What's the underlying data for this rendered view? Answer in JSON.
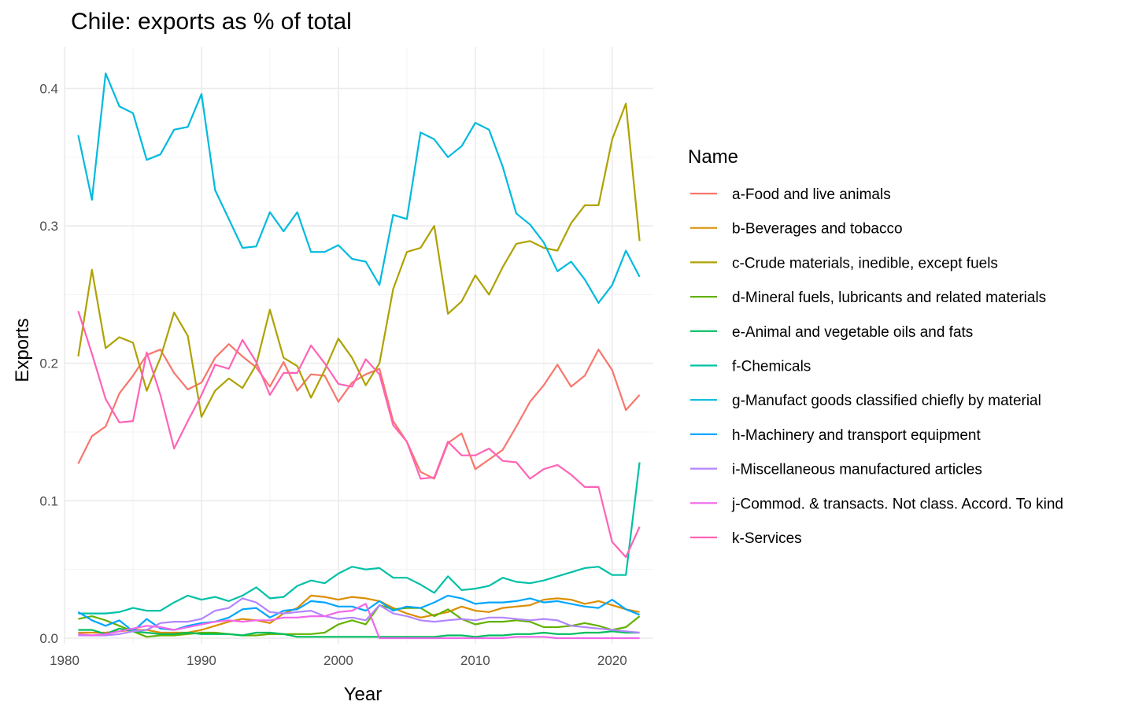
{
  "chart_data": {
    "type": "line",
    "title": "Chile: exports as % of total",
    "xlabel": "Year",
    "ylabel": "Exports",
    "legend_title": "Name",
    "legend_position": "right",
    "grid": true,
    "xlim": [
      1980,
      2023
    ],
    "ylim": [
      -0.004,
      0.43
    ],
    "x_ticks": [
      1980,
      1990,
      2000,
      2010,
      2020
    ],
    "x_minor_ticks": [
      1985,
      1995,
      2005,
      2015
    ],
    "y_ticks": [
      0.0,
      0.1,
      0.2,
      0.3,
      0.4
    ],
    "y_tick_labels": [
      "0.0",
      "0.1",
      "0.2",
      "0.3",
      "0.4"
    ],
    "y_minor_ticks": [
      0.05,
      0.15,
      0.25,
      0.35
    ],
    "x": [
      1981,
      1982,
      1983,
      1984,
      1985,
      1986,
      1987,
      1988,
      1989,
      1990,
      1991,
      1992,
      1993,
      1994,
      1995,
      1996,
      1997,
      1998,
      1999,
      2000,
      2001,
      2002,
      2003,
      2004,
      2005,
      2006,
      2007,
      2008,
      2009,
      2010,
      2011,
      2012,
      2013,
      2014,
      2015,
      2016,
      2017,
      2018,
      2019,
      2020,
      2021,
      2022
    ],
    "series": [
      {
        "name": "a-Food and live animals",
        "color": "#F8766D",
        "values": [
          0.127,
          0.147,
          0.154,
          0.178,
          0.191,
          0.206,
          0.21,
          0.193,
          0.181,
          0.186,
          0.204,
          0.214,
          0.205,
          0.197,
          0.183,
          0.201,
          0.18,
          0.192,
          0.191,
          0.172,
          0.186,
          0.192,
          0.196,
          0.158,
          0.143,
          0.121,
          0.116,
          0.142,
          0.149,
          0.123,
          0.13,
          0.137,
          0.154,
          0.172,
          0.184,
          0.199,
          0.183,
          0.191,
          0.21,
          0.195,
          0.166,
          0.177
        ]
      },
      {
        "name": "b-Beverages and tobacco",
        "color": "#DB8E00",
        "values": [
          0.004,
          0.004,
          0.004,
          0.005,
          0.006,
          0.006,
          0.004,
          0.004,
          0.004,
          0.006,
          0.009,
          0.012,
          0.014,
          0.013,
          0.011,
          0.018,
          0.022,
          0.031,
          0.03,
          0.028,
          0.03,
          0.029,
          0.027,
          0.022,
          0.018,
          0.015,
          0.017,
          0.019,
          0.023,
          0.02,
          0.019,
          0.022,
          0.023,
          0.024,
          0.028,
          0.029,
          0.028,
          0.025,
          0.027,
          0.024,
          0.021,
          0.019
        ]
      },
      {
        "name": "c-Crude materials, inedible, except fuels",
        "color": "#AEA200",
        "values": [
          0.205,
          0.268,
          0.211,
          0.219,
          0.215,
          0.18,
          0.204,
          0.237,
          0.22,
          0.161,
          0.18,
          0.189,
          0.182,
          0.199,
          0.239,
          0.204,
          0.198,
          0.175,
          0.195,
          0.218,
          0.204,
          0.184,
          0.2,
          0.254,
          0.281,
          0.284,
          0.3,
          0.236,
          0.245,
          0.264,
          0.25,
          0.27,
          0.287,
          0.289,
          0.284,
          0.282,
          0.302,
          0.315,
          0.315,
          0.363,
          0.389,
          0.289
        ]
      },
      {
        "name": "d-Mineral fuels, lubricants and related materials",
        "color": "#64B200",
        "values": [
          0.014,
          0.016,
          0.013,
          0.009,
          0.005,
          0.001,
          0.002,
          0.002,
          0.003,
          0.004,
          0.004,
          0.003,
          0.002,
          0.002,
          0.003,
          0.003,
          0.003,
          0.003,
          0.004,
          0.01,
          0.013,
          0.01,
          0.024,
          0.021,
          0.022,
          0.022,
          0.016,
          0.021,
          0.014,
          0.01,
          0.012,
          0.012,
          0.013,
          0.012,
          0.008,
          0.008,
          0.009,
          0.011,
          0.009,
          0.006,
          0.008,
          0.016
        ]
      },
      {
        "name": "e-Animal and vegetable oils and fats",
        "color": "#00BD5C",
        "values": [
          0.006,
          0.006,
          0.003,
          0.007,
          0.005,
          0.004,
          0.003,
          0.003,
          0.004,
          0.003,
          0.003,
          0.003,
          0.002,
          0.004,
          0.004,
          0.003,
          0.001,
          0.001,
          0.001,
          0.001,
          0.001,
          0.001,
          0.001,
          0.001,
          0.001,
          0.001,
          0.001,
          0.002,
          0.002,
          0.001,
          0.002,
          0.002,
          0.003,
          0.003,
          0.004,
          0.003,
          0.003,
          0.004,
          0.004,
          0.005,
          0.004,
          0.004
        ]
      },
      {
        "name": "f-Chemicals",
        "color": "#00C1A7",
        "values": [
          0.018,
          0.018,
          0.018,
          0.019,
          0.022,
          0.02,
          0.02,
          0.026,
          0.031,
          0.028,
          0.03,
          0.027,
          0.031,
          0.037,
          0.029,
          0.03,
          0.038,
          0.042,
          0.04,
          0.047,
          0.052,
          0.05,
          0.051,
          0.044,
          0.044,
          0.039,
          0.033,
          0.045,
          0.035,
          0.036,
          0.038,
          0.044,
          0.041,
          0.04,
          0.042,
          0.045,
          0.048,
          0.051,
          0.052,
          0.046,
          0.046,
          0.128
        ]
      },
      {
        "name": "g-Manufact goods classified chiefly by material",
        "color": "#00BADE",
        "values": [
          0.366,
          0.319,
          0.411,
          0.387,
          0.382,
          0.348,
          0.352,
          0.37,
          0.372,
          0.396,
          0.326,
          0.305,
          0.284,
          0.285,
          0.31,
          0.296,
          0.31,
          0.281,
          0.281,
          0.286,
          0.276,
          0.274,
          0.257,
          0.308,
          0.305,
          0.368,
          0.363,
          0.35,
          0.358,
          0.375,
          0.37,
          0.343,
          0.309,
          0.301,
          0.288,
          0.267,
          0.274,
          0.261,
          0.244,
          0.257,
          0.282,
          0.263
        ]
      },
      {
        "name": "h-Machinery and transport equipment",
        "color": "#00A6FF",
        "values": [
          0.019,
          0.013,
          0.009,
          0.013,
          0.005,
          0.014,
          0.007,
          0.006,
          0.009,
          0.011,
          0.012,
          0.015,
          0.021,
          0.022,
          0.015,
          0.02,
          0.021,
          0.027,
          0.026,
          0.023,
          0.023,
          0.02,
          0.027,
          0.02,
          0.023,
          0.022,
          0.026,
          0.031,
          0.029,
          0.025,
          0.026,
          0.026,
          0.027,
          0.029,
          0.026,
          0.027,
          0.025,
          0.023,
          0.022,
          0.028,
          0.021,
          0.017
        ]
      },
      {
        "name": "i-Miscellaneous manufactured articles",
        "color": "#B385FF",
        "values": [
          0.002,
          0.002,
          0.002,
          0.003,
          0.005,
          0.006,
          0.011,
          0.012,
          0.012,
          0.014,
          0.02,
          0.022,
          0.029,
          0.026,
          0.019,
          0.018,
          0.019,
          0.02,
          0.016,
          0.014,
          0.015,
          0.013,
          0.024,
          0.018,
          0.016,
          0.013,
          0.012,
          0.013,
          0.014,
          0.013,
          0.015,
          0.015,
          0.014,
          0.013,
          0.014,
          0.013,
          0.009,
          0.008,
          0.007,
          0.006,
          0.005,
          0.004
        ]
      },
      {
        "name": "j-Commod. & transacts. Not class. Accord. To kind",
        "color": "#EF67EB",
        "values": [
          0.003,
          0.002,
          0.003,
          0.005,
          0.007,
          0.009,
          0.008,
          0.006,
          0.008,
          0.01,
          0.012,
          0.013,
          0.012,
          0.013,
          0.013,
          0.015,
          0.015,
          0.016,
          0.016,
          0.019,
          0.02,
          0.025,
          0.0,
          0.0,
          0.0,
          0.0,
          0.0,
          0.0,
          0.0,
          0.0,
          0.0,
          0.0,
          0.001,
          0.001,
          0.001,
          0.0,
          0.0,
          0.0,
          0.0,
          0.0,
          0.0,
          0.0
        ]
      },
      {
        "name": "k-Services",
        "color": "#FF63B6",
        "values": [
          0.238,
          0.207,
          0.174,
          0.157,
          0.158,
          0.208,
          0.177,
          0.138,
          0.158,
          0.177,
          0.199,
          0.196,
          0.217,
          0.201,
          0.177,
          0.193,
          0.193,
          0.213,
          0.2,
          0.185,
          0.183,
          0.203,
          0.192,
          0.155,
          0.143,
          0.116,
          0.117,
          0.143,
          0.133,
          0.133,
          0.138,
          0.129,
          0.128,
          0.116,
          0.123,
          0.126,
          0.119,
          0.11,
          0.11,
          0.07,
          0.059,
          0.081
        ]
      }
    ]
  }
}
